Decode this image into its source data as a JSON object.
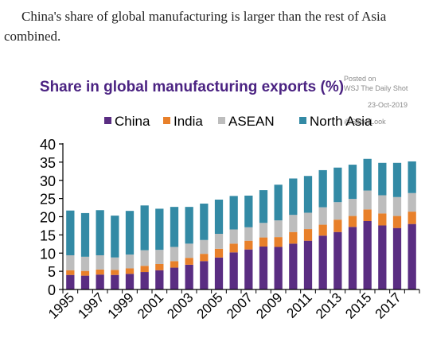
{
  "caption": "China's share of global manufacturing is larger than the rest of Asia combined.",
  "watermark": {
    "line1": "Posted on",
    "line2": "WSJ The Daily Shot",
    "line3": "23-Oct-2019",
    "line4": "@SoberLook"
  },
  "chart_data": {
    "type": "bar",
    "stacked": true,
    "title": "Share in global manufacturing exports (%)",
    "title_color": "#4b2382",
    "xlabel": "",
    "ylabel": "",
    "ylim": [
      0,
      40
    ],
    "yticks": [
      0,
      5,
      10,
      15,
      20,
      25,
      30,
      35,
      40
    ],
    "grid": false,
    "legend_position": "top",
    "categories": [
      "1995",
      "1996",
      "1997",
      "1998",
      "1999",
      "2000",
      "2001",
      "2002",
      "2003",
      "2004",
      "2005",
      "2006",
      "2007",
      "2008",
      "2009",
      "2010",
      "2011",
      "2012",
      "2013",
      "2014",
      "2015",
      "2016",
      "2017",
      "2018"
    ],
    "xtick_labels": [
      "1995",
      "1997",
      "1999",
      "2001",
      "2003",
      "2005",
      "2007",
      "2009",
      "2011",
      "2013",
      "2015",
      "2017"
    ],
    "series": [
      {
        "name": "China",
        "color": "#5a2d82",
        "values": [
          4.0,
          3.8,
          4.1,
          4.0,
          4.3,
          4.8,
          5.3,
          6.0,
          6.8,
          7.8,
          8.8,
          10.2,
          11.0,
          11.8,
          11.7,
          12.6,
          13.4,
          14.8,
          15.8,
          17.2,
          18.8,
          17.6,
          16.9,
          18.0
        ]
      },
      {
        "name": "India",
        "color": "#e8802a",
        "values": [
          1.3,
          1.3,
          1.4,
          1.4,
          1.5,
          1.7,
          1.7,
          1.8,
          1.9,
          2.0,
          2.4,
          2.4,
          2.4,
          2.5,
          2.7,
          3.2,
          3.2,
          3.0,
          3.4,
          3.0,
          3.2,
          3.3,
          3.3,
          3.4
        ]
      },
      {
        "name": "ASEAN",
        "color": "#bdbdbd",
        "values": [
          4.1,
          3.9,
          3.9,
          3.4,
          3.8,
          4.3,
          3.9,
          3.9,
          3.9,
          3.8,
          4.1,
          3.9,
          3.7,
          4.0,
          4.6,
          4.7,
          4.5,
          4.8,
          4.8,
          4.7,
          5.2,
          5.0,
          5.2,
          5.1
        ]
      },
      {
        "name": "North Asia",
        "color": "#338aa5",
        "values": [
          12.3,
          12.0,
          12.4,
          11.5,
          12.0,
          12.3,
          11.3,
          11.0,
          10.1,
          10.0,
          9.4,
          9.2,
          8.7,
          9.0,
          9.8,
          10.0,
          10.1,
          10.2,
          9.5,
          9.4,
          8.7,
          8.9,
          9.4,
          8.7
        ]
      }
    ]
  }
}
